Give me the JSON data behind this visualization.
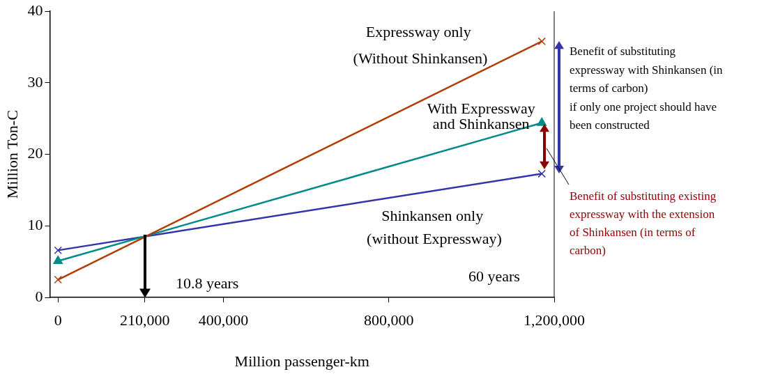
{
  "chart_data": {
    "type": "line",
    "xlabel": "Million passenger-km",
    "ylabel": "Million Ton-C",
    "xlim": [
      -20000,
      1200000
    ],
    "xticks": [
      0,
      {
        "value": 210000,
        "label": "210,000"
      },
      {
        "value": 400000,
        "label": "400,000"
      },
      {
        "value": 800000,
        "label": "800,000"
      },
      {
        "value": 1200000,
        "label": "1,200,000"
      }
    ],
    "ylim": [
      0,
      40
    ],
    "yticks": [
      0,
      10,
      20,
      30,
      40
    ],
    "grid": false,
    "legend": false,
    "line_style": "solid",
    "x": [
      0,
      1170000
    ],
    "series": [
      {
        "name": "Expressway only\n (Without Shinkansen)",
        "color": "#b23c00",
        "values": [
          2.5,
          35.8
        ],
        "marker": "cross"
      },
      {
        "name": "With Expressway\nand Shinkansen",
        "color": "#008b8b",
        "values": [
          5.1,
          24.4
        ],
        "marker": "triangle"
      },
      {
        "name": "Shinkansen only\n (without Expressway)",
        "color": "#3333aa",
        "values": [
          6.6,
          17.3
        ],
        "marker": "cross"
      }
    ],
    "annotations": [
      "10.8 years",
      "60 years",
      "Benefit of substituting\nexpressway with Shinkansen (in\nterms of carbon)\nif only one project should have\nbeen constructed",
      "Benefit of substituting existing\nexpressway with the extension\nof Shinkansen (in terms of\ncarbon)"
    ]
  }
}
